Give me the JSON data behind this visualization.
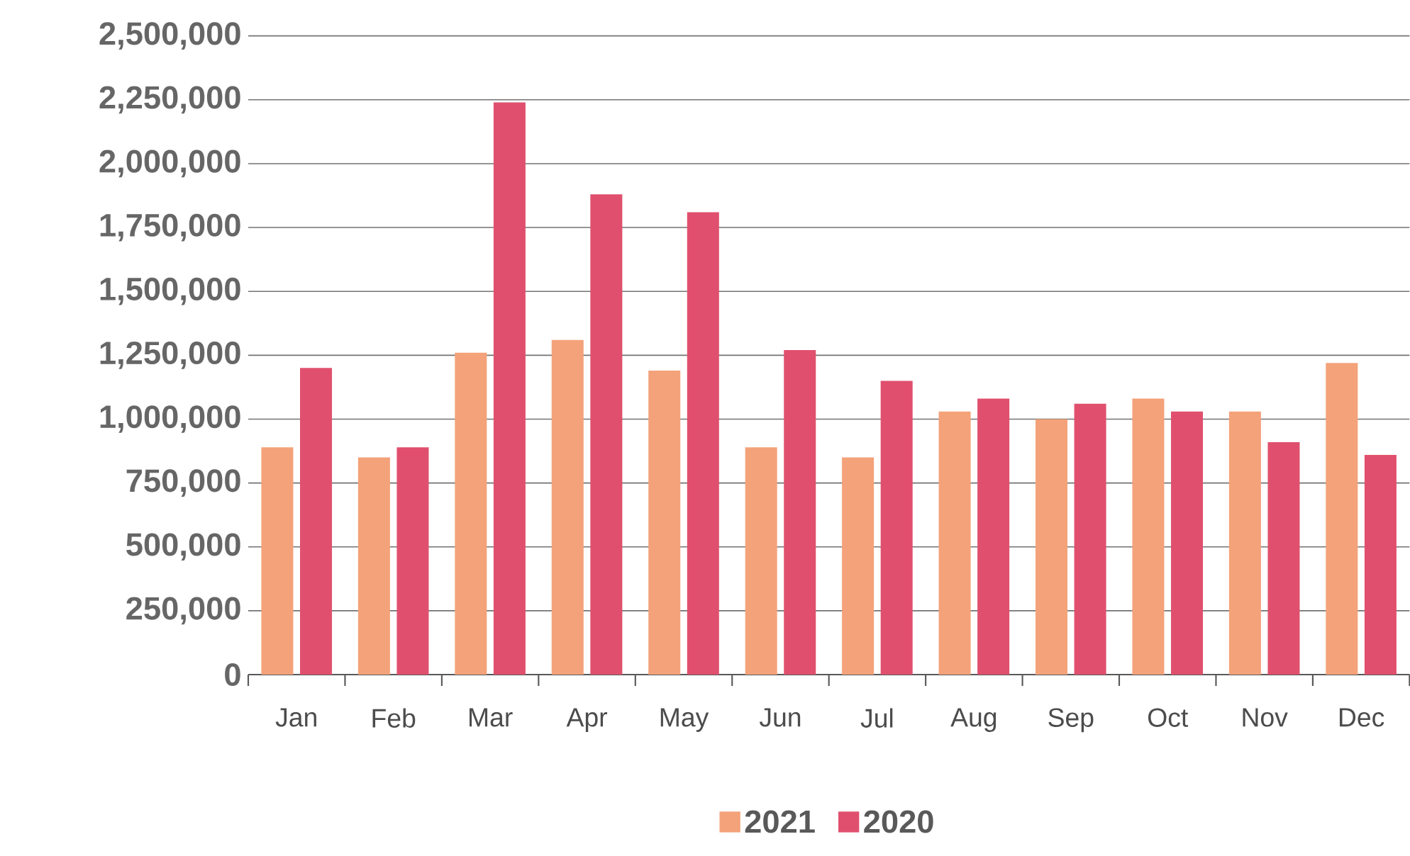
{
  "chart_data": {
    "type": "bar",
    "categories": [
      "Jan",
      "Feb",
      "Mar",
      "Apr",
      "May",
      "Jun",
      "Jul",
      "Aug",
      "Sep",
      "Oct",
      "Nov",
      "Dec"
    ],
    "series": [
      {
        "name": "2021",
        "color": "#f4a27a",
        "values": [
          890000,
          850000,
          1260000,
          1310000,
          1190000,
          890000,
          850000,
          1030000,
          1000000,
          1080000,
          1030000,
          1220000
        ]
      },
      {
        "name": "2020",
        "color": "#e0506e",
        "values": [
          1200000,
          890000,
          2240000,
          1880000,
          1810000,
          1270000,
          1150000,
          1080000,
          1060000,
          1030000,
          910000,
          860000
        ]
      }
    ],
    "ylim": [
      0,
      2500000
    ],
    "yticks": [
      {
        "value": 0,
        "label": "0"
      },
      {
        "value": 250000,
        "label": "250,000"
      },
      {
        "value": 500000,
        "label": "500,000"
      },
      {
        "value": 750000,
        "label": "750,000"
      },
      {
        "value": 1000000,
        "label": "1,000,000"
      },
      {
        "value": 1250000,
        "label": "1,250,000"
      },
      {
        "value": 1500000,
        "label": "1,500,000"
      },
      {
        "value": 1750000,
        "label": "1,750,000"
      },
      {
        "value": 2000000,
        "label": "2,000,000"
      },
      {
        "value": 2250000,
        "label": "2,250,000"
      },
      {
        "value": 2500000,
        "label": "2,500,000"
      }
    ],
    "grid": "y",
    "legend": "bottom"
  }
}
